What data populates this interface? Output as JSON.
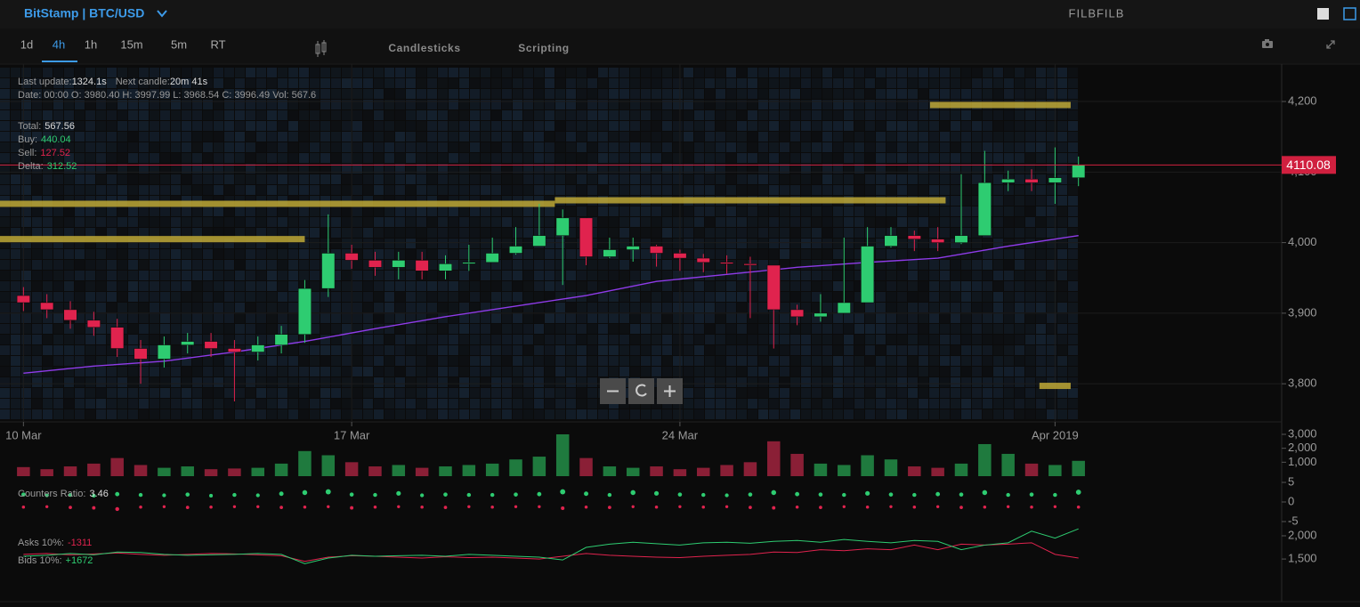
{
  "header": {
    "market": "BitStamp | BTC/USD",
    "user": "FILBFILB"
  },
  "toolbar": {
    "timeframes": [
      "1d",
      "4h",
      "1h",
      "15m",
      "5m",
      "RT"
    ],
    "selected": 1,
    "tabs": [
      "Candlesticks",
      "Scripting"
    ]
  },
  "info": {
    "last_update_label": "Last update:",
    "last_update": "1324.1s",
    "next_candle_label": "Next candle:",
    "next_candle": "20m 41s",
    "candle": "Date: 00:00 O: 3980.40 H: 3997.99 L: 3968.54 C: 3996.49 Vol: 567.6",
    "total_label": "Total:",
    "total": 567.56,
    "buy_label": "Buy:",
    "buy": 440.04,
    "sell_label": "Sell:",
    "sell": 127.52,
    "delta_label": "Delta:",
    "delta": 312.52
  },
  "chart_data": [
    {
      "type": "candlestick",
      "xlim": [
        -3,
        161
      ],
      "xticks": [
        {
          "value": 0,
          "label": "10 Mar"
        },
        {
          "value": 42,
          "label": "17 Mar"
        },
        {
          "value": 84,
          "label": "24 Mar"
        },
        {
          "value": 132,
          "label": "Apr 2019"
        }
      ],
      "ylim": [
        3746,
        4253
      ],
      "yticks": [
        {
          "value": 4200,
          "label": "4,200"
        },
        {
          "value": 4100,
          "label": "4,100"
        },
        {
          "value": 4000,
          "label": "4,000"
        },
        {
          "value": 3900,
          "label": "3,900"
        },
        {
          "value": 3800,
          "label": "3,800"
        }
      ],
      "grid": true,
      "up_color": "#2ecc71",
      "down_color": "#e0234e",
      "candles": {
        "x": [
          0,
          3,
          6,
          9,
          12,
          15,
          18,
          21,
          24,
          27,
          30,
          33,
          36,
          39,
          42,
          45,
          48,
          51,
          54,
          57,
          60,
          63,
          66,
          69,
          72,
          75,
          78,
          81,
          84,
          87,
          90,
          93,
          96,
          99,
          102,
          105,
          108,
          111,
          114,
          117,
          120,
          123,
          126,
          129,
          132,
          135
        ],
        "open": [
          3925,
          3915,
          3905,
          3890,
          3880,
          3850,
          3835,
          3855,
          3860,
          3850,
          3845,
          3855,
          3870,
          3935,
          3985,
          3975,
          3965,
          3975,
          3960,
          3970,
          3972,
          3985,
          3995,
          4010,
          4035,
          3980,
          3990,
          3995,
          3985,
          3978,
          3972,
          3970,
          3968,
          3905,
          3895,
          3900,
          3915,
          3995,
          4010,
          4005,
          4000,
          4010,
          4085,
          4090,
          4085,
          4092
        ],
        "high": [
          3937,
          3927,
          3917,
          3902,
          3892,
          3862,
          3867,
          3872,
          3872,
          3862,
          3867,
          3882,
          3947,
          4040,
          3997,
          3987,
          3987,
          3987,
          3982,
          3997,
          4007,
          4022,
          4055,
          4047,
          4002,
          4007,
          4007,
          3997,
          3990,
          3984,
          3982,
          3980,
          3917,
          3912,
          3927,
          4007,
          4022,
          4022,
          4017,
          4022,
          4097,
          4130,
          4102,
          4104,
          4135,
          4122
        ],
        "low": [
          3903,
          3893,
          3878,
          3868,
          3838,
          3800,
          3823,
          3843,
          3838,
          3775,
          3833,
          3843,
          3858,
          3923,
          3963,
          3953,
          3948,
          3948,
          3948,
          3960,
          3973,
          3983,
          3998,
          3940,
          3968,
          3978,
          3973,
          3966,
          3960,
          3958,
          3956,
          3893,
          3850,
          3883,
          3888,
          3903,
          3983,
          3993,
          3988,
          3988,
          3998,
          4060,
          4073,
          4073,
          4055,
          4080
        ],
        "close": [
          3915,
          3905,
          3890,
          3880,
          3850,
          3835,
          3855,
          3860,
          3850,
          3845,
          3855,
          3870,
          3935,
          3985,
          3975,
          3965,
          3975,
          3960,
          3970,
          3972,
          3985,
          3995,
          4010,
          4035,
          3980,
          3990,
          3995,
          3985,
          3978,
          3972,
          3970,
          3968,
          3905,
          3895,
          3900,
          3915,
          3995,
          4010,
          4005,
          4000,
          4010,
          4085,
          4090,
          4085,
          4092,
          4110
        ]
      },
      "ma": {
        "color": "#8e3be8",
        "x": [
          0,
          9,
          18,
          27,
          36,
          45,
          54,
          63,
          72,
          81,
          90,
          99,
          108,
          117,
          126,
          135
        ],
        "values": [
          3815,
          3825,
          3832,
          3845,
          3860,
          3878,
          3895,
          3910,
          3925,
          3945,
          3955,
          3965,
          3972,
          3978,
          3995,
          4010
        ]
      },
      "levels": {
        "color": "#c9b238",
        "prices": [
          4195,
          4055,
          4060,
          4005,
          3797
        ],
        "x_start": [
          116,
          -3,
          68,
          -3,
          130
        ],
        "x_end": [
          134,
          68,
          118,
          36,
          134
        ]
      },
      "price_line": {
        "value": 4110.08,
        "color": "#d0203f"
      }
    },
    {
      "type": "bar",
      "x": [
        0,
        3,
        6,
        9,
        12,
        15,
        18,
        21,
        24,
        27,
        30,
        33,
        36,
        39,
        42,
        45,
        48,
        51,
        54,
        57,
        60,
        63,
        66,
        69,
        72,
        75,
        78,
        81,
        84,
        87,
        90,
        93,
        96,
        99,
        102,
        105,
        108,
        111,
        114,
        117,
        120,
        123,
        126,
        129,
        132,
        135
      ],
      "xlim": [
        -3,
        161
      ],
      "values": [
        650,
        500,
        700,
        900,
        1300,
        800,
        600,
        700,
        500,
        550,
        600,
        900,
        1800,
        1500,
        1000,
        700,
        800,
        600,
        700,
        800,
        900,
        1200,
        1400,
        3000,
        1300,
        700,
        600,
        700,
        500,
        600,
        800,
        1000,
        2500,
        1600,
        900,
        800,
        1500,
        1200,
        700,
        600,
        900,
        2300,
        1600,
        900,
        800,
        1100
      ],
      "ylim": [
        0,
        3000
      ],
      "yticks": [
        {
          "value": 3000,
          "label": "3,000"
        },
        {
          "value": 2000,
          "label": "2,000"
        },
        {
          "value": 1000,
          "label": "1,000"
        }
      ]
    },
    {
      "type": "scatter",
      "label": "Counters Ratio:",
      "current": 3.46,
      "x": [
        0,
        3,
        6,
        9,
        12,
        15,
        18,
        21,
        24,
        27,
        30,
        33,
        36,
        39,
        42,
        45,
        48,
        51,
        54,
        57,
        60,
        63,
        66,
        69,
        72,
        75,
        78,
        81,
        84,
        87,
        90,
        93,
        96,
        99,
        102,
        105,
        108,
        111,
        114,
        117,
        120,
        123,
        126,
        129,
        132,
        135
      ],
      "xlim": [
        -3,
        161
      ],
      "ylim": [
        -7.5,
        7.5
      ],
      "yticks": [
        5,
        0,
        -5
      ],
      "series": [
        {
          "color": "#2ecc71",
          "values": [
            1.9,
            1.7,
            1.8,
            1.6,
            2.0,
            1.8,
            1.7,
            1.9,
            1.6,
            1.8,
            1.7,
            2.1,
            2.4,
            2.6,
            1.9,
            1.8,
            2.2,
            1.7,
            1.9,
            1.8,
            1.8,
            1.9,
            2.0,
            2.6,
            2.1,
            1.8,
            2.4,
            2.2,
            1.9,
            1.8,
            1.7,
            1.9,
            2.4,
            2.0,
            1.9,
            1.8,
            2.2,
            1.9,
            1.8,
            2.0,
            1.9,
            2.4,
            1.8,
            1.9,
            1.8,
            2.5
          ]
        },
        {
          "color": "#e0234e",
          "values": [
            -1.3,
            -1.2,
            -1.4,
            -1.5,
            -1.8,
            -1.3,
            -1.2,
            -1.4,
            -1.3,
            -1.2,
            -1.2,
            -1.4,
            -1.3,
            -1.2,
            -1.5,
            -1.3,
            -1.2,
            -1.3,
            -1.4,
            -1.2,
            -1.3,
            -1.2,
            -1.2,
            -1.6,
            -1.3,
            -1.4,
            -1.2,
            -1.3,
            -1.2,
            -1.3,
            -1.2,
            -1.4,
            -1.5,
            -1.3,
            -1.4,
            -1.2,
            -1.3,
            -1.2,
            -1.3,
            -1.2,
            -1.4,
            -1.3,
            -1.2,
            -1.3,
            -1.2,
            -1.3
          ]
        }
      ]
    },
    {
      "type": "line",
      "x": [
        0,
        3,
        6,
        9,
        12,
        15,
        18,
        21,
        24,
        27,
        30,
        33,
        36,
        39,
        42,
        45,
        48,
        51,
        54,
        57,
        60,
        63,
        66,
        69,
        72,
        75,
        78,
        81,
        84,
        87,
        90,
        93,
        96,
        99,
        102,
        105,
        108,
        111,
        114,
        117,
        120,
        123,
        126,
        129,
        132,
        135
      ],
      "xlim": [
        -3,
        161
      ],
      "ylim": [
        1080,
        2230
      ],
      "yticks": [
        {
          "value": 2000,
          "label": "2,000"
        },
        {
          "value": 1500,
          "label": "1,500"
        }
      ],
      "series": [
        {
          "name": "Asks 10%:",
          "current": -1311,
          "color": "#e0234e",
          "values": [
            1600,
            1620,
            1590,
            1610,
            1630,
            1600,
            1580,
            1600,
            1620,
            1610,
            1590,
            1570,
            1450,
            1540,
            1570,
            1560,
            1540,
            1520,
            1550,
            1530,
            1540,
            1520,
            1500,
            1560,
            1620,
            1580,
            1560,
            1540,
            1530,
            1560,
            1580,
            1600,
            1650,
            1640,
            1700,
            1680,
            1720,
            1700,
            1800,
            1700,
            1820,
            1800,
            1820,
            1850,
            1600,
            1520
          ]
        },
        {
          "name": "Bids 10%:",
          "current": "+1672",
          "color": "#2ecc71",
          "values": [
            1560,
            1580,
            1620,
            1590,
            1650,
            1640,
            1600,
            1580,
            1590,
            1600,
            1620,
            1600,
            1400,
            1520,
            1580,
            1560,
            1570,
            1580,
            1560,
            1600,
            1580,
            1560,
            1540,
            1480,
            1750,
            1820,
            1860,
            1830,
            1800,
            1850,
            1860,
            1840,
            1880,
            1900,
            1860,
            1920,
            1880,
            1850,
            1900,
            1880,
            1700,
            1800,
            1850,
            2100,
            1950,
            2150
          ]
        }
      ]
    }
  ]
}
